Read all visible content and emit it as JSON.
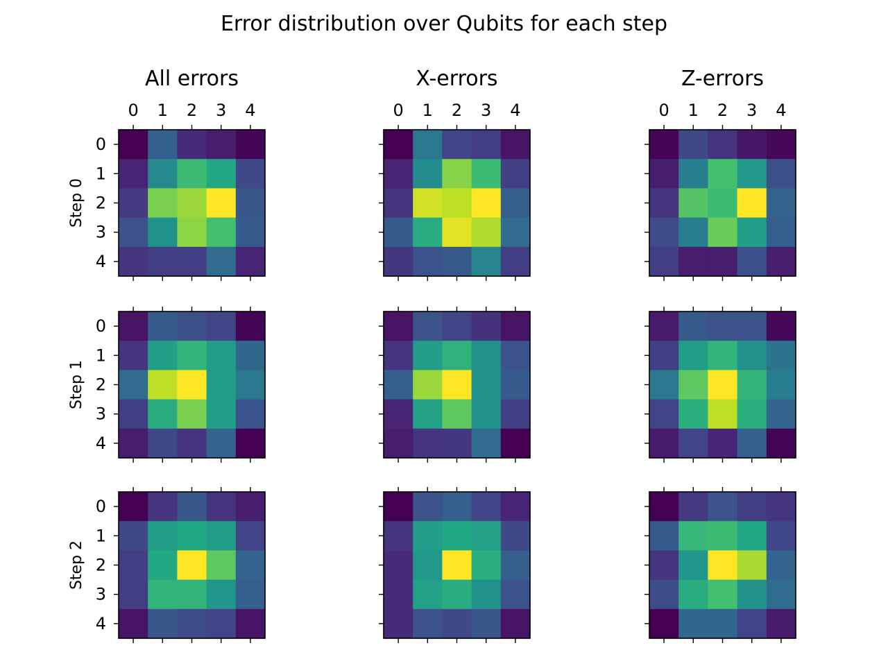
{
  "chart_data": {
    "type": "heatmap",
    "title": "Error distribution over Qubits for each step",
    "colormap": "viridis",
    "column_titles": [
      "All errors",
      "X-errors",
      "Z-errors"
    ],
    "row_labels": [
      "Step 0",
      "Step 1",
      "Step 2"
    ],
    "x_ticks": [
      "0",
      "1",
      "2",
      "3",
      "4"
    ],
    "y_ticks": [
      "0",
      "1",
      "2",
      "3",
      "4"
    ],
    "panels": [
      [
        [
          [
            0.0,
            0.3,
            0.12,
            0.08,
            0.01
          ],
          [
            0.1,
            0.47,
            0.68,
            0.6,
            0.22
          ],
          [
            0.17,
            0.8,
            0.85,
            1.0,
            0.27
          ],
          [
            0.25,
            0.5,
            0.83,
            0.7,
            0.28
          ],
          [
            0.15,
            0.18,
            0.18,
            0.35,
            0.1
          ]
        ],
        [
          [
            0.0,
            0.4,
            0.2,
            0.18,
            0.05
          ],
          [
            0.1,
            0.48,
            0.82,
            0.68,
            0.18
          ],
          [
            0.15,
            0.93,
            0.9,
            1.0,
            0.3
          ],
          [
            0.28,
            0.62,
            0.96,
            0.88,
            0.35
          ],
          [
            0.16,
            0.26,
            0.28,
            0.45,
            0.18
          ]
        ],
        [
          [
            0.01,
            0.22,
            0.15,
            0.06,
            0.02
          ],
          [
            0.08,
            0.42,
            0.7,
            0.53,
            0.24
          ],
          [
            0.15,
            0.73,
            0.68,
            1.0,
            0.32
          ],
          [
            0.23,
            0.42,
            0.77,
            0.56,
            0.3
          ],
          [
            0.18,
            0.08,
            0.08,
            0.24,
            0.08
          ]
        ]
      ],
      [
        [
          [
            0.05,
            0.28,
            0.24,
            0.2,
            0.01
          ],
          [
            0.15,
            0.56,
            0.65,
            0.55,
            0.33
          ],
          [
            0.35,
            0.9,
            1.0,
            0.55,
            0.4
          ],
          [
            0.18,
            0.62,
            0.8,
            0.56,
            0.26
          ],
          [
            0.08,
            0.22,
            0.15,
            0.32,
            0.0
          ]
        ],
        [
          [
            0.05,
            0.25,
            0.2,
            0.14,
            0.05
          ],
          [
            0.15,
            0.55,
            0.64,
            0.5,
            0.25
          ],
          [
            0.3,
            0.85,
            1.0,
            0.5,
            0.28
          ],
          [
            0.1,
            0.57,
            0.75,
            0.5,
            0.18
          ],
          [
            0.08,
            0.15,
            0.16,
            0.35,
            0.0
          ]
        ],
        [
          [
            0.07,
            0.28,
            0.25,
            0.25,
            0.02
          ],
          [
            0.18,
            0.55,
            0.65,
            0.5,
            0.38
          ],
          [
            0.4,
            0.75,
            1.0,
            0.65,
            0.42
          ],
          [
            0.2,
            0.63,
            0.9,
            0.63,
            0.32
          ],
          [
            0.07,
            0.2,
            0.1,
            0.3,
            0.01
          ]
        ]
      ],
      [
        [
          [
            0.0,
            0.15,
            0.27,
            0.15,
            0.08
          ],
          [
            0.22,
            0.55,
            0.6,
            0.55,
            0.2
          ],
          [
            0.18,
            0.6,
            1.0,
            0.75,
            0.32
          ],
          [
            0.18,
            0.65,
            0.65,
            0.52,
            0.3
          ],
          [
            0.05,
            0.27,
            0.23,
            0.2,
            0.05
          ]
        ],
        [
          [
            0.0,
            0.25,
            0.3,
            0.2,
            0.1
          ],
          [
            0.15,
            0.55,
            0.6,
            0.57,
            0.22
          ],
          [
            0.12,
            0.53,
            1.0,
            0.63,
            0.3
          ],
          [
            0.12,
            0.57,
            0.62,
            0.5,
            0.25
          ],
          [
            0.12,
            0.25,
            0.22,
            0.27,
            0.05
          ]
        ],
        [
          [
            0.0,
            0.17,
            0.25,
            0.18,
            0.15
          ],
          [
            0.28,
            0.66,
            0.68,
            0.6,
            0.21
          ],
          [
            0.15,
            0.52,
            1.0,
            0.87,
            0.32
          ],
          [
            0.23,
            0.62,
            0.7,
            0.51,
            0.35
          ],
          [
            0.0,
            0.33,
            0.33,
            0.2,
            0.07
          ]
        ]
      ]
    ]
  }
}
